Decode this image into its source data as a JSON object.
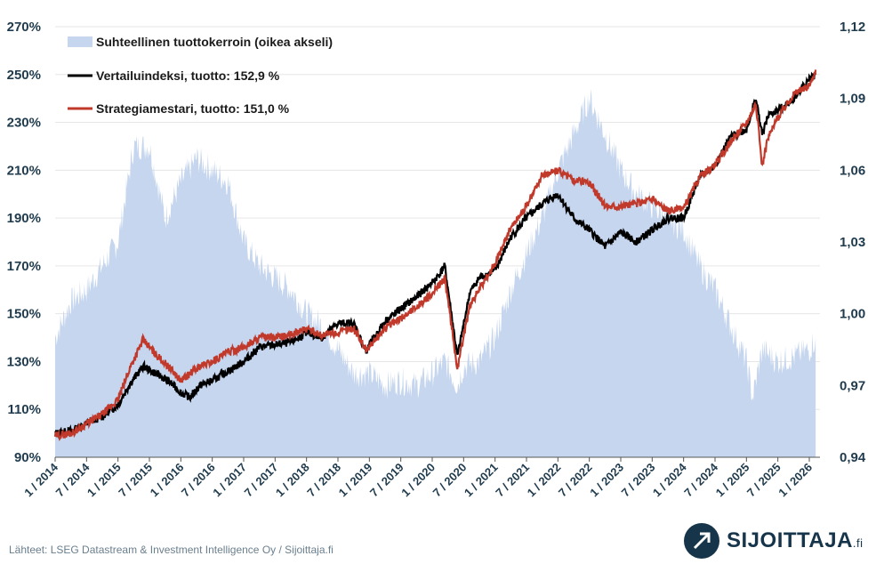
{
  "chart_data": {
    "type": "line+area",
    "title": "",
    "left_axis": {
      "ylim": [
        90,
        270
      ],
      "ticks": [
        90,
        110,
        130,
        150,
        170,
        190,
        210,
        230,
        250,
        270
      ],
      "tick_labels": [
        "90%",
        "110%",
        "130%",
        "150%",
        "170%",
        "190%",
        "210%",
        "230%",
        "250%",
        "270%"
      ]
    },
    "right_axis": {
      "ylim": [
        0.94,
        1.12
      ],
      "ticks": [
        0.94,
        0.97,
        1.0,
        1.03,
        1.06,
        1.09,
        1.12
      ],
      "tick_labels": [
        "0,94",
        "0,97",
        "1,00",
        "1,03",
        "1,06",
        "1,09",
        "1,12"
      ]
    },
    "x_range": [
      2014.0,
      2026.17
    ],
    "x_ticks": [
      2014.0,
      2014.5,
      2015.0,
      2015.5,
      2016.0,
      2016.5,
      2017.0,
      2017.5,
      2018.0,
      2018.5,
      2019.0,
      2019.5,
      2020.0,
      2020.5,
      2021.0,
      2021.5,
      2022.0,
      2022.5,
      2023.0,
      2023.5,
      2024.0,
      2024.5,
      2025.0,
      2025.5,
      2026.0
    ],
    "x_tick_labels": [
      "1 / 2014",
      "7 / 2014",
      "1 / 2015",
      "7 / 2015",
      "1 / 2016",
      "7 / 2016",
      "1 / 2017",
      "7 / 2017",
      "1 / 2018",
      "7 / 2018",
      "1 / 2019",
      "7 / 2019",
      "1 / 2020",
      "7 / 2020",
      "1 / 2021",
      "7 / 2021",
      "1 / 2022",
      "7 / 2022",
      "1 / 2023",
      "7 / 2023",
      "1 / 2024",
      "7 / 2024",
      "1 / 2025",
      "7 / 2025",
      "1 / 2026"
    ],
    "legend": [
      {
        "label": "Suhteellinen tuottokerroin (oikea akseli)",
        "color": "#c6d6ee",
        "kind": "area"
      },
      {
        "label": "Vertailuindeksi, tuotto: 152,9 %",
        "color": "#000000",
        "kind": "line"
      },
      {
        "label": "Strategiamestari, tuotto: 151,0 %",
        "color": "#c0392b",
        "kind": "line"
      }
    ],
    "series": [
      {
        "name": "Suhteellinen tuottokerroin",
        "axis": "right",
        "x": [
          2014.0,
          2014.25,
          2014.5,
          2014.75,
          2015.0,
          2015.25,
          2015.5,
          2015.75,
          2016.0,
          2016.25,
          2016.5,
          2016.75,
          2017.0,
          2017.25,
          2017.5,
          2017.75,
          2018.0,
          2018.25,
          2018.5,
          2018.75,
          2019.0,
          2019.25,
          2019.5,
          2019.75,
          2020.0,
          2020.2,
          2020.4,
          2020.5,
          2020.75,
          2021.0,
          2021.25,
          2021.5,
          2021.75,
          2022.0,
          2022.25,
          2022.5,
          2022.75,
          2023.0,
          2023.25,
          2023.5,
          2023.75,
          2024.0,
          2024.25,
          2024.5,
          2024.75,
          2025.0,
          2025.1,
          2025.25,
          2025.5,
          2025.75,
          2026.0,
          2026.1
        ],
        "values": [
          0.99,
          1.005,
          1.01,
          1.02,
          1.03,
          1.07,
          1.07,
          1.04,
          1.055,
          1.065,
          1.06,
          1.055,
          1.03,
          1.02,
          1.015,
          1.01,
          1.0,
          0.995,
          0.985,
          0.975,
          0.975,
          0.97,
          0.972,
          0.97,
          0.975,
          0.98,
          0.97,
          0.978,
          0.98,
          0.99,
          1.01,
          1.025,
          1.04,
          1.06,
          1.075,
          1.09,
          1.075,
          1.06,
          1.05,
          1.045,
          1.04,
          1.035,
          1.02,
          1.01,
          0.995,
          0.98,
          0.965,
          0.985,
          0.98,
          0.982,
          0.985,
          0.99
        ]
      },
      {
        "name": "Vertailuindeksi",
        "axis": "left",
        "x": [
          2014.0,
          2014.25,
          2014.5,
          2014.75,
          2015.0,
          2015.2,
          2015.4,
          2015.6,
          2015.8,
          2016.0,
          2016.15,
          2016.3,
          2016.5,
          2016.75,
          2017.0,
          2017.25,
          2017.5,
          2017.75,
          2018.0,
          2018.25,
          2018.5,
          2018.75,
          2018.95,
          2019.0,
          2019.25,
          2019.5,
          2019.75,
          2020.0,
          2020.13,
          2020.2,
          2020.4,
          2020.6,
          2020.75,
          2021.0,
          2021.25,
          2021.5,
          2021.75,
          2022.0,
          2022.25,
          2022.5,
          2022.75,
          2023.0,
          2023.25,
          2023.5,
          2023.75,
          2024.0,
          2024.25,
          2024.5,
          2024.75,
          2025.0,
          2025.15,
          2025.25,
          2025.35,
          2025.5,
          2025.75,
          2026.0,
          2026.1
        ],
        "values": [
          100,
          101,
          104,
          107,
          112,
          121,
          128,
          125,
          122,
          117,
          115,
          120,
          122,
          126,
          130,
          136,
          137,
          138,
          142,
          140,
          146,
          146,
          134,
          137,
          147,
          152,
          157,
          163,
          167,
          170,
          132,
          159,
          165,
          168,
          182,
          190,
          196,
          200,
          190,
          185,
          178,
          184,
          180,
          185,
          190,
          190,
          207,
          212,
          224,
          227,
          240,
          225,
          233,
          235,
          240,
          248,
          250
        ]
      },
      {
        "name": "Strategiamestari",
        "axis": "left",
        "x": [
          2014.0,
          2014.25,
          2014.5,
          2014.75,
          2015.0,
          2015.2,
          2015.4,
          2015.6,
          2015.8,
          2016.0,
          2016.15,
          2016.3,
          2016.5,
          2016.75,
          2017.0,
          2017.25,
          2017.5,
          2017.75,
          2018.0,
          2018.25,
          2018.5,
          2018.75,
          2018.95,
          2019.0,
          2019.25,
          2019.5,
          2019.75,
          2020.0,
          2020.13,
          2020.2,
          2020.4,
          2020.6,
          2020.75,
          2021.0,
          2021.25,
          2021.5,
          2021.75,
          2022.0,
          2022.25,
          2022.5,
          2022.75,
          2023.0,
          2023.25,
          2023.5,
          2023.75,
          2024.0,
          2024.25,
          2024.5,
          2024.75,
          2025.0,
          2025.15,
          2025.25,
          2025.35,
          2025.5,
          2025.75,
          2026.0,
          2026.1
        ],
        "values": [
          99,
          100,
          104,
          108,
          114,
          128,
          139,
          133,
          128,
          122,
          125,
          128,
          130,
          134,
          136,
          140,
          140,
          141,
          144,
          141,
          142,
          144,
          135,
          136,
          144,
          148,
          153,
          158,
          163,
          165,
          127,
          154,
          160,
          171,
          186,
          195,
          208,
          210,
          206,
          205,
          195,
          195,
          196,
          198,
          193,
          194,
          207,
          212,
          222,
          230,
          238,
          212,
          224,
          232,
          242,
          245,
          252
        ]
      }
    ]
  },
  "source": "Lähteet: LSEG Datastream & Investment Intelligence Oy / Sijoittaja.fi",
  "brand": {
    "name": "SIJOITTAJA",
    "suffix": ".fi"
  },
  "colors": {
    "area": "#c6d6ee",
    "benchmark": "#000000",
    "strategy": "#c0392b",
    "axis_text": "#1f3b4d",
    "grid": "#e6e6e6"
  }
}
